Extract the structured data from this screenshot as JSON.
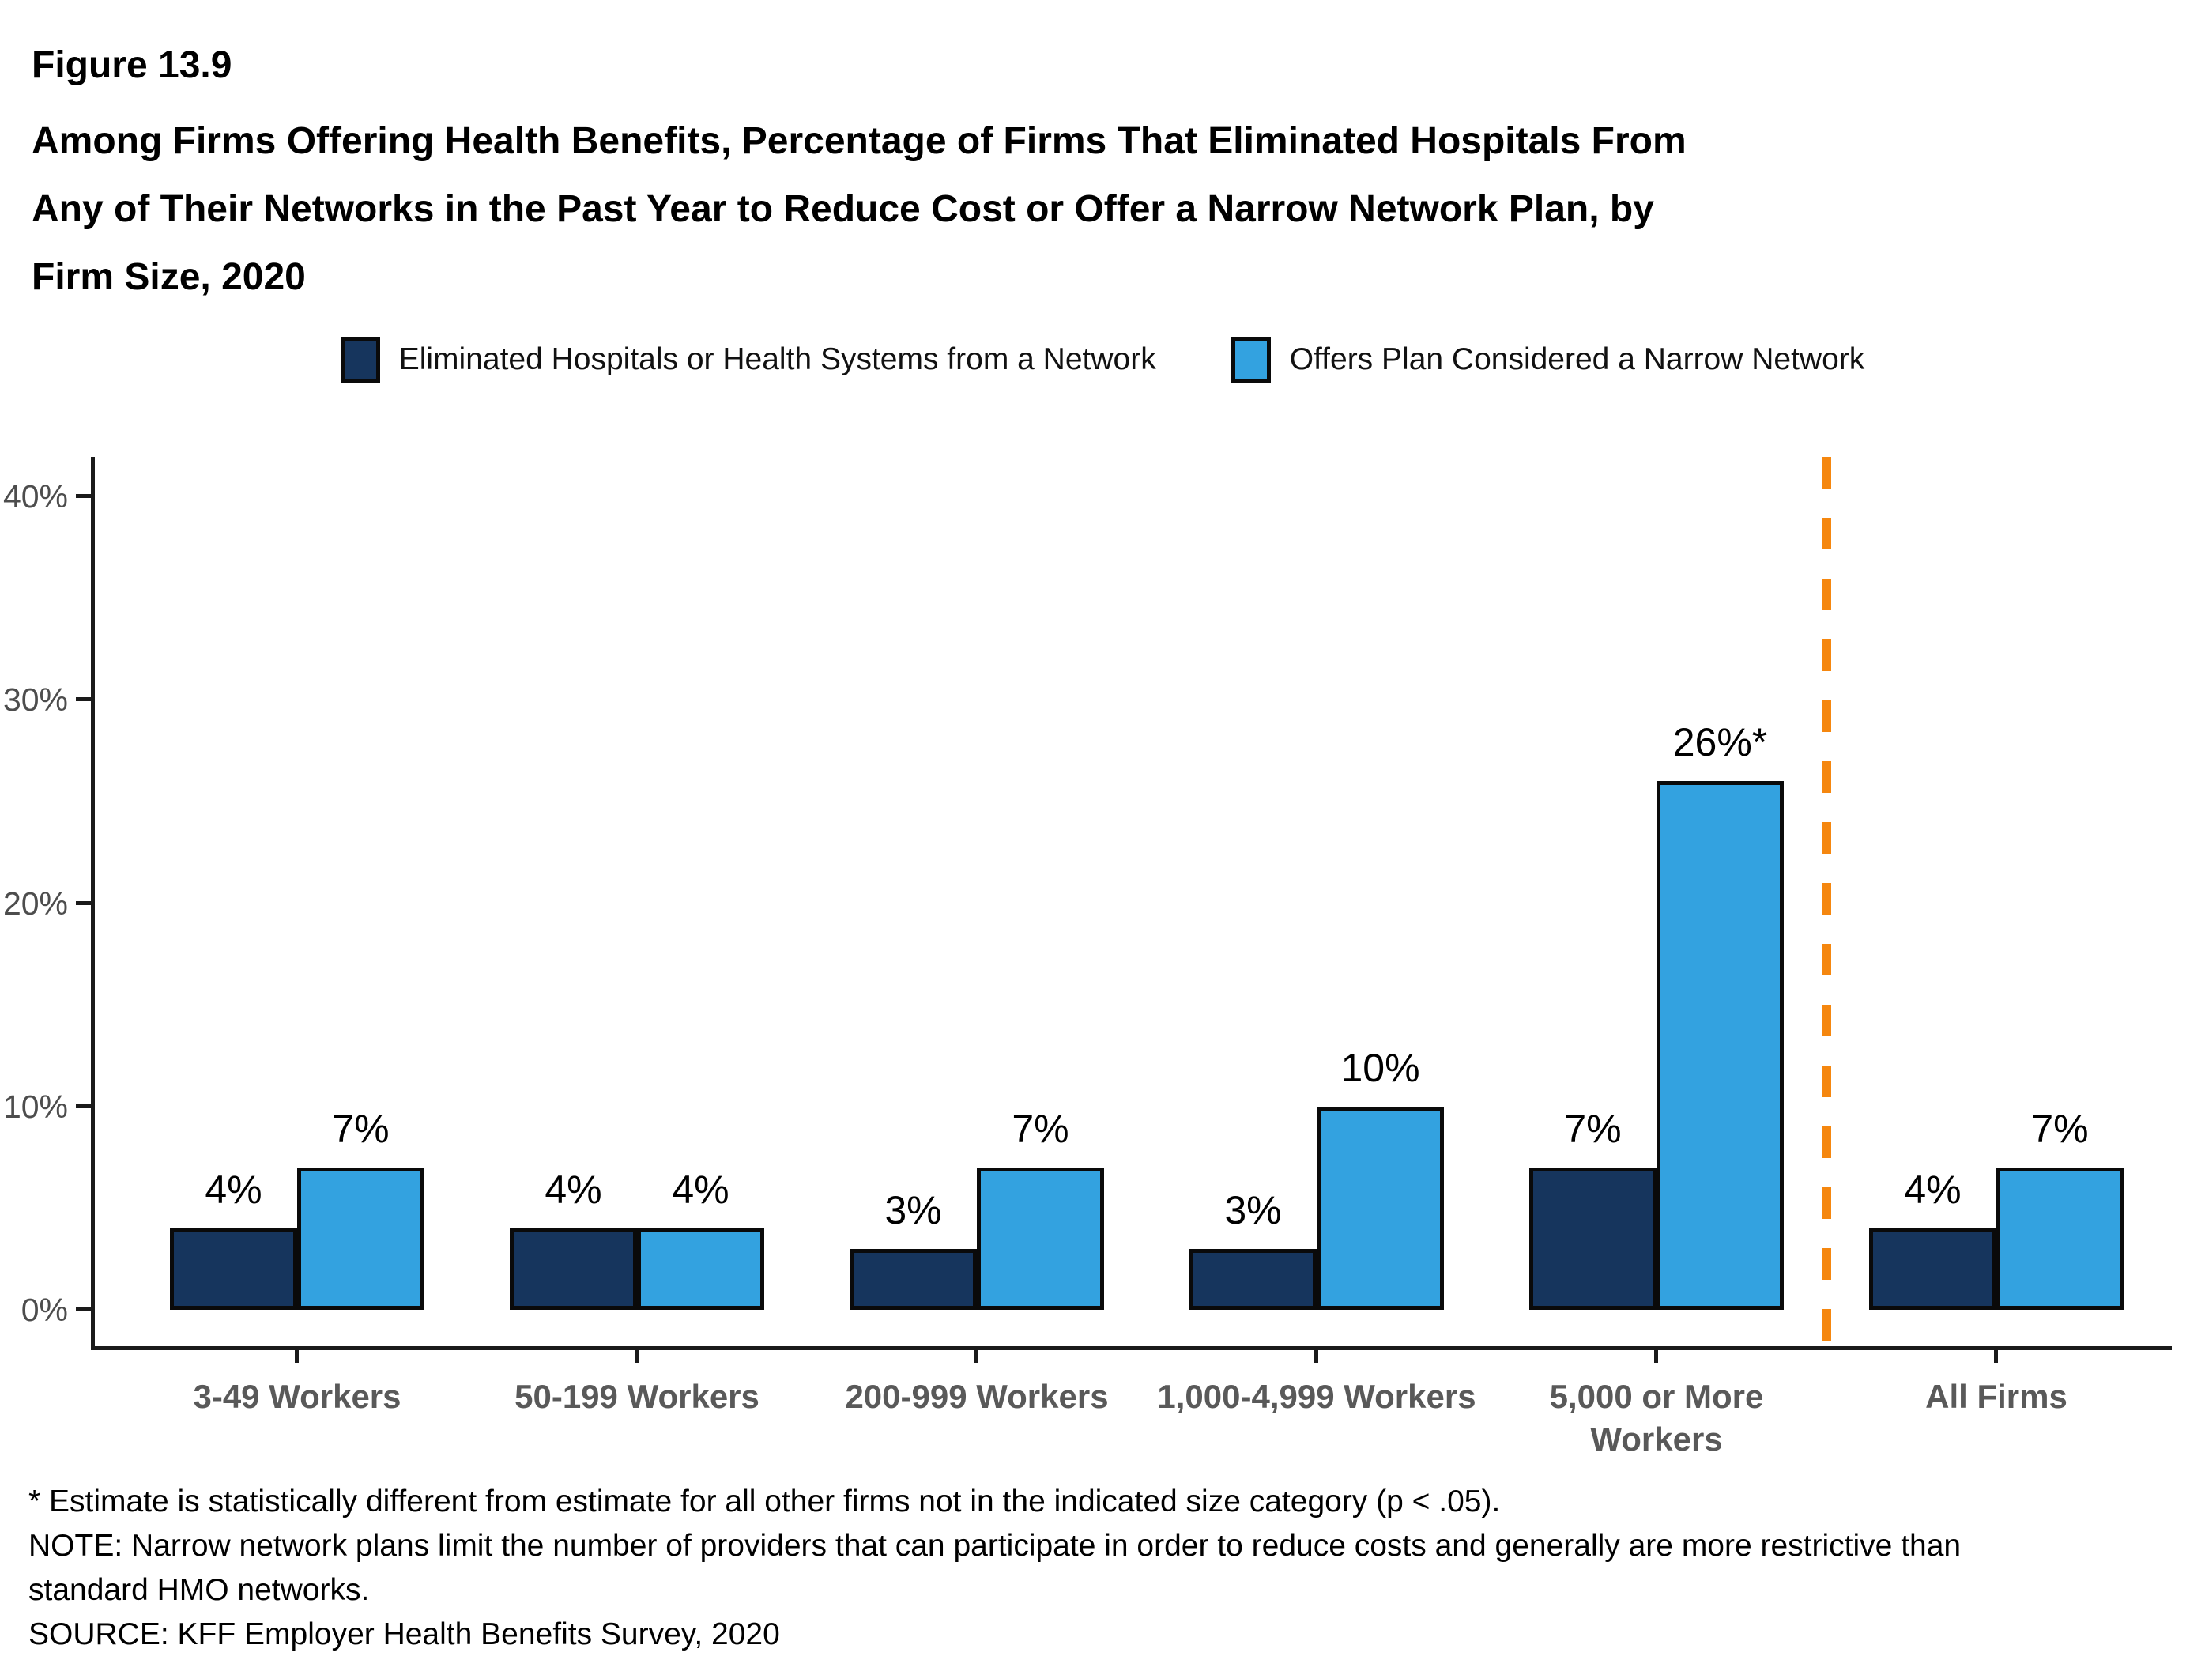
{
  "header": {
    "figure_number": "Figure 13.9",
    "title": "Among Firms Offering Health Benefits, Percentage of Firms That Eliminated Hospitals From\nAny of Their Networks in the Past Year to Reduce Cost or Offer a Narrow Network Plan, by\nFirm Size, 2020"
  },
  "legend": {
    "items": [
      {
        "label": "Eliminated Hospitals or Health Systems from a Network",
        "color": "#16355d"
      },
      {
        "label": "Offers Plan Considered a Narrow Network",
        "color": "#33a2e0"
      }
    ]
  },
  "chart_data": {
    "type": "bar",
    "title": "",
    "xlabel": "",
    "ylabel": "",
    "grid": false,
    "legend_position": "top",
    "categories": [
      "3-49 Workers",
      "50-199 Workers",
      "200-999 Workers",
      "1,000-4,999 Workers",
      "5,000 or More\nWorkers",
      "All Firms"
    ],
    "series": [
      {
        "name": "Eliminated Hospitals or Health Systems from a Network",
        "color": "#16355d",
        "values": [
          4,
          4,
          3,
          3,
          7,
          4
        ],
        "value_labels": [
          "4%",
          "4%",
          "3%",
          "3%",
          "7%",
          "4%"
        ]
      },
      {
        "name": "Offers Plan Considered a Narrow Network",
        "color": "#33a2e0",
        "values": [
          7,
          4,
          7,
          10,
          26,
          7
        ],
        "value_labels": [
          "7%",
          "4%",
          "7%",
          "10%",
          "26%*",
          "7%"
        ]
      }
    ],
    "ylim": [
      0,
      40
    ],
    "y_ticks": [
      {
        "value": 0,
        "label": "0%"
      },
      {
        "value": 10,
        "label": "10%"
      },
      {
        "value": 20,
        "label": "20%"
      },
      {
        "value": 30,
        "label": "30%"
      },
      {
        "value": 40,
        "label": "40%"
      }
    ],
    "axis_color": "#1a1a1a",
    "bar_outline_color": "#0a0a0a",
    "separator": {
      "between": [
        "5,000 or More\nWorkers",
        "All Firms"
      ],
      "style": "dashed",
      "color": "#f5870f"
    }
  },
  "footnotes": [
    "* Estimate is statistically different from estimate for all other firms not in the indicated size category (p < .05).",
    "NOTE: Narrow network plans limit the number of providers that can participate in order to reduce costs and generally are more restrictive than\nstandard HMO networks.",
    "SOURCE: KFF Employer Health Benefits Survey, 2020"
  ]
}
